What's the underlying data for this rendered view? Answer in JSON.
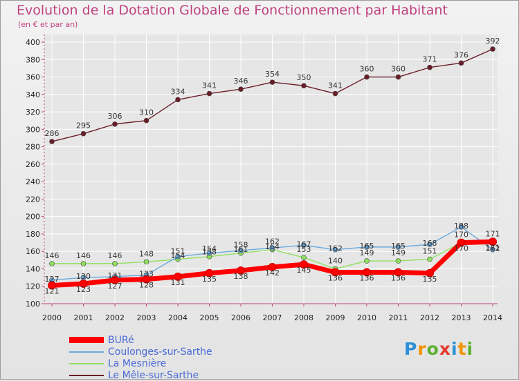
{
  "chart_data": {
    "type": "line",
    "title": "Evolution de la Dotation Globale de Fonctionnement par Habitant",
    "subtitle": "(en € et par an)",
    "xlabel": "",
    "ylabel": "",
    "ylim": [
      100,
      400
    ],
    "ytick_step": 20,
    "categories": [
      "2000",
      "2001",
      "2002",
      "2003",
      "2004",
      "2005",
      "2006",
      "2007",
      "2008",
      "2009",
      "2010",
      "2011",
      "2012",
      "2013",
      "2014"
    ],
    "series": [
      {
        "name": "BURé",
        "color": "#ff0000",
        "values": [
          121,
          123,
          127,
          128,
          131,
          135,
          138,
          142,
          145,
          136,
          136,
          136,
          135,
          170,
          171
        ]
      },
      {
        "name": "Coulonges-sur-Sarthe",
        "color": "#6aaae0",
        "values": [
          127,
          130,
          131,
          133,
          154,
          158,
          161,
          164,
          167,
          162,
          165,
          165,
          168,
          188,
          162
        ]
      },
      {
        "name": "La Mesnière",
        "color": "#8fe060",
        "values": [
          146,
          146,
          146,
          148,
          151,
          154,
          158,
          162,
          153,
          140,
          149,
          149,
          151,
          170,
          171
        ]
      },
      {
        "name": "Le Mêle-sur-Sarthe",
        "color": "#6b1c28",
        "values": [
          286,
          295,
          306,
          310,
          334,
          341,
          346,
          354,
          350,
          341,
          360,
          360,
          371,
          376,
          392
        ]
      }
    ],
    "legend_position": "bottom-left",
    "grid": true
  },
  "brand": {
    "letters": [
      "P",
      "r",
      "o",
      "x",
      "i",
      "t",
      "i"
    ],
    "colors": [
      "#2a8fd8",
      "#f29400",
      "#5bb02e",
      "#e63a2e",
      "#2a8fd8",
      "#f29400",
      "#5bb02e"
    ]
  }
}
